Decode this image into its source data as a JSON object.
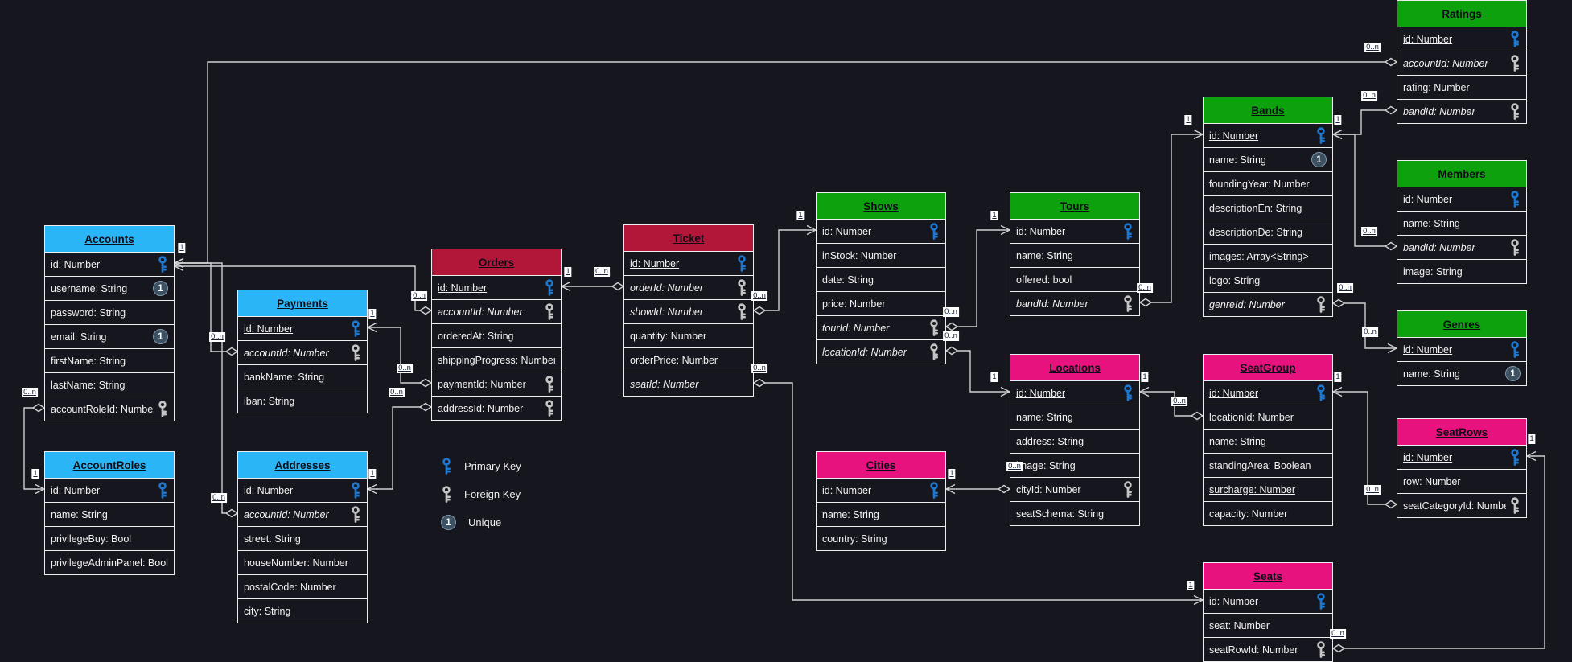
{
  "diagram": {
    "colors": {
      "background": "#16161e",
      "line": "#d0d0d0",
      "blue_header": "#29b5f6",
      "green_header": "#0da10d",
      "crimson_header": "#b2173a",
      "pink_header": "#e8127e",
      "primary_key_icon": "#1d77cf",
      "foreign_key_icon": "#c4c4c4",
      "unique_badge": "#3c5162"
    },
    "legend": {
      "primary_key": "Primary Key",
      "foreign_key": "Foreign Key",
      "unique": "Unique"
    },
    "entities": [
      {
        "name": "Accounts",
        "color": "#29b5f6",
        "fields": [
          {
            "label": "id: Number",
            "underline": true,
            "key": "pk"
          },
          {
            "label": "username: String",
            "badge": "unique"
          },
          {
            "label": "password: String"
          },
          {
            "label": "email: String",
            "badge": "unique"
          },
          {
            "label": "firstName: String"
          },
          {
            "label": "lastName: String"
          },
          {
            "label": "accountRoleId: Number",
            "key": "fk"
          }
        ]
      },
      {
        "name": "AccountRoles",
        "color": "#29b5f6",
        "fields": [
          {
            "label": "id: Number",
            "underline": true,
            "key": "pk"
          },
          {
            "label": "name: String"
          },
          {
            "label": "privilegeBuy: Bool"
          },
          {
            "label": "privilegeAdminPanel: Bool"
          }
        ]
      },
      {
        "name": "Payments",
        "color": "#29b5f6",
        "fields": [
          {
            "label": "id: Number",
            "underline": true,
            "key": "pk"
          },
          {
            "label": "accountId: Number",
            "italic": true,
            "key": "fk"
          },
          {
            "label": "bankName: String"
          },
          {
            "label": "iban: String"
          }
        ]
      },
      {
        "name": "Addresses",
        "color": "#29b5f6",
        "fields": [
          {
            "label": "id: Number",
            "underline": true,
            "key": "pk"
          },
          {
            "label": "accountId: Number",
            "italic": true,
            "key": "fk"
          },
          {
            "label": "street: String"
          },
          {
            "label": "houseNumber: Number"
          },
          {
            "label": "postalCode: Number"
          },
          {
            "label": "city: String"
          }
        ]
      },
      {
        "name": "Orders",
        "color": "#b2173a",
        "fields": [
          {
            "label": "id: Number",
            "underline": true,
            "key": "pk"
          },
          {
            "label": "accountId: Number",
            "italic": true,
            "key": "fk"
          },
          {
            "label": "orderedAt: String"
          },
          {
            "label": "shippingProgress: Number"
          },
          {
            "label": "paymentId: Number",
            "key": "fk"
          },
          {
            "label": "addressId: Number",
            "key": "fk"
          }
        ]
      },
      {
        "name": "Ticket",
        "color": "#b2173a",
        "fields": [
          {
            "label": "id: Number",
            "underline": true,
            "key": "pk"
          },
          {
            "label": "orderId: Number",
            "italic": true,
            "key": "fk"
          },
          {
            "label": "showId: Number",
            "italic": true,
            "key": "fk"
          },
          {
            "label": "quantity: Number"
          },
          {
            "label": "orderPrice: Number"
          },
          {
            "label": "seatId: Number",
            "italic": true
          }
        ]
      },
      {
        "name": "Shows",
        "color": "#0da10d",
        "fields": [
          {
            "label": "id: Number",
            "underline": true,
            "key": "pk"
          },
          {
            "label": "inStock: Number"
          },
          {
            "label": "date: String"
          },
          {
            "label": "price: Number"
          },
          {
            "label": "tourId: Number",
            "italic": true,
            "key": "fk"
          },
          {
            "label": "locationId: Number",
            "italic": true,
            "key": "fk"
          }
        ]
      },
      {
        "name": "Tours",
        "color": "#0da10d",
        "fields": [
          {
            "label": "id: Number",
            "underline": true,
            "key": "pk"
          },
          {
            "label": "name: String"
          },
          {
            "label": "offered: bool"
          },
          {
            "label": "bandId: Number",
            "italic": true,
            "key": "fk"
          }
        ]
      },
      {
        "name": "Cities",
        "color": "#e8127e",
        "fields": [
          {
            "label": "id: Number",
            "underline": true,
            "key": "pk"
          },
          {
            "label": "name: String"
          },
          {
            "label": "country: String"
          }
        ]
      },
      {
        "name": "Locations",
        "color": "#e8127e",
        "fields": [
          {
            "label": "id: Number",
            "underline": true,
            "key": "pk"
          },
          {
            "label": "name: String"
          },
          {
            "label": "address: String"
          },
          {
            "label": "image: String"
          },
          {
            "label": "cityId: Number",
            "key": "fk"
          },
          {
            "label": "seatSchema: String"
          }
        ]
      },
      {
        "name": "Bands",
        "color": "#0da10d",
        "fields": [
          {
            "label": "id: Number",
            "underline": true,
            "key": "pk"
          },
          {
            "label": "name: String",
            "badge": "unique"
          },
          {
            "label": "foundingYear: Number"
          },
          {
            "label": "descriptionEn: String"
          },
          {
            "label": "descriptionDe: String"
          },
          {
            "label": "images: Array<String>"
          },
          {
            "label": "logo: String"
          },
          {
            "label": "genreId: Number",
            "italic": true,
            "key": "fk"
          }
        ]
      },
      {
        "name": "SeatGroup",
        "color": "#e8127e",
        "fields": [
          {
            "label": "id: Number",
            "underline": true,
            "key": "pk"
          },
          {
            "label": "locationId: Number"
          },
          {
            "label": "name: String"
          },
          {
            "label": "standingArea: Boolean"
          },
          {
            "label": "surcharge: Number",
            "underline": true
          },
          {
            "label": "capacity: Number"
          }
        ]
      },
      {
        "name": "Seats",
        "color": "#e8127e",
        "fields": [
          {
            "label": "id: Number",
            "underline": true,
            "key": "pk"
          },
          {
            "label": "seat: Number"
          },
          {
            "label": "seatRowId: Number",
            "key": "fk"
          }
        ]
      },
      {
        "name": "Ratings",
        "color": "#0da10d",
        "fields": [
          {
            "label": "id: Number",
            "underline": true,
            "key": "pk"
          },
          {
            "label": "accountId: Number",
            "italic": true,
            "key": "fk"
          },
          {
            "label": "rating: Number"
          },
          {
            "label": "bandId: Number",
            "italic": true,
            "key": "fk"
          }
        ]
      },
      {
        "name": "Members",
        "color": "#0da10d",
        "fields": [
          {
            "label": "id: Number",
            "underline": true,
            "key": "pk"
          },
          {
            "label": "name: String"
          },
          {
            "label": "bandId: Number",
            "italic": true,
            "key": "fk"
          },
          {
            "label": "image: String"
          }
        ]
      },
      {
        "name": "Genres",
        "color": "#0da10d",
        "fields": [
          {
            "label": "id: Number",
            "underline": true,
            "key": "pk"
          },
          {
            "label": "name: String",
            "badge": "unique"
          }
        ]
      },
      {
        "name": "SeatRows",
        "color": "#e8127e",
        "fields": [
          {
            "label": "id: Number",
            "underline": true,
            "key": "pk"
          },
          {
            "label": "row: Number"
          },
          {
            "label": "seatCategoryId: Number",
            "key": "fk"
          }
        ]
      }
    ],
    "relationships": [
      {
        "from": "Accounts.accountRoleId",
        "to": "AccountRoles.id",
        "from_label": "0..n",
        "to_label": "1"
      },
      {
        "from": "Payments.accountId",
        "to": "Accounts.id",
        "from_label": "0..n",
        "to_label": "1"
      },
      {
        "from": "Addresses.accountId",
        "to": "Accounts.id",
        "from_label": "0..n"
      },
      {
        "from": "Orders.accountId",
        "to": "Accounts.id",
        "from_label": "0..n"
      },
      {
        "from": "Orders.paymentId",
        "to": "Payments.id",
        "from_label": "0..n",
        "to_label": "1"
      },
      {
        "from": "Orders.addressId",
        "to": "Addresses.id",
        "from_label": "0..n",
        "to_label": "1"
      },
      {
        "from": "Ticket.orderId",
        "to": "Orders.id",
        "from_label": "0..n",
        "to_label": "1"
      },
      {
        "from": "Ticket.showId",
        "to": "Shows.id",
        "from_label": "0..n",
        "to_label": "1"
      },
      {
        "from": "Ticket.seatId",
        "to": "Seats.id",
        "from_label": "0..n",
        "to_label": "1"
      },
      {
        "from": "Shows.tourId",
        "to": "Tours.id",
        "from_label": "0..n",
        "to_label": "1"
      },
      {
        "from": "Shows.locationId",
        "to": "Locations.id",
        "from_label": "0..n",
        "to_label": "1"
      },
      {
        "from": "Tours.bandId",
        "to": "Bands.id",
        "from_label": "0..n",
        "to_label": "1"
      },
      {
        "from": "Locations.cityId",
        "to": "Cities.id",
        "from_label": "0..n",
        "to_label": "1"
      },
      {
        "from": "Bands.genreId",
        "to": "Genres.id",
        "from_label": "0..n",
        "to_label": "0..n"
      },
      {
        "from": "Ratings.accountId",
        "to": "Accounts.id",
        "from_label": "0..n"
      },
      {
        "from": "Ratings.bandId",
        "to": "Bands.id",
        "from_label": "0..n",
        "to_label": "1"
      },
      {
        "from": "Members.bandId",
        "to": "Bands.id",
        "from_label": "0..n"
      },
      {
        "from": "SeatGroup.locationId",
        "to": "Locations.id",
        "from_label": "0..n",
        "to_label": "1"
      },
      {
        "from": "SeatRows.seatCategoryId",
        "to": "SeatGroup.id",
        "from_label": "0..n",
        "to_label": "1"
      },
      {
        "from": "Seats.seatRowId",
        "to": "SeatRows.id",
        "from_label": "0..n",
        "to_label": "1"
      }
    ]
  }
}
